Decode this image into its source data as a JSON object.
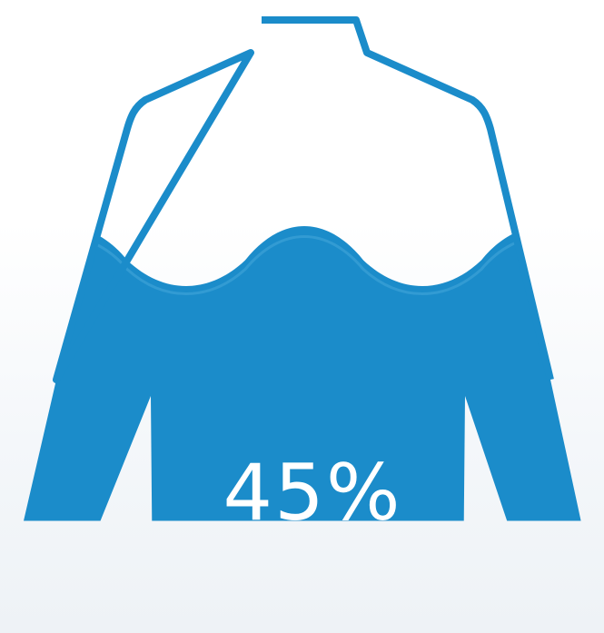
{
  "infographic": {
    "percentage_label": "45%",
    "fill_fraction": 0.45,
    "accent_color": "#1b8cca",
    "icon": "shirt-icon"
  }
}
